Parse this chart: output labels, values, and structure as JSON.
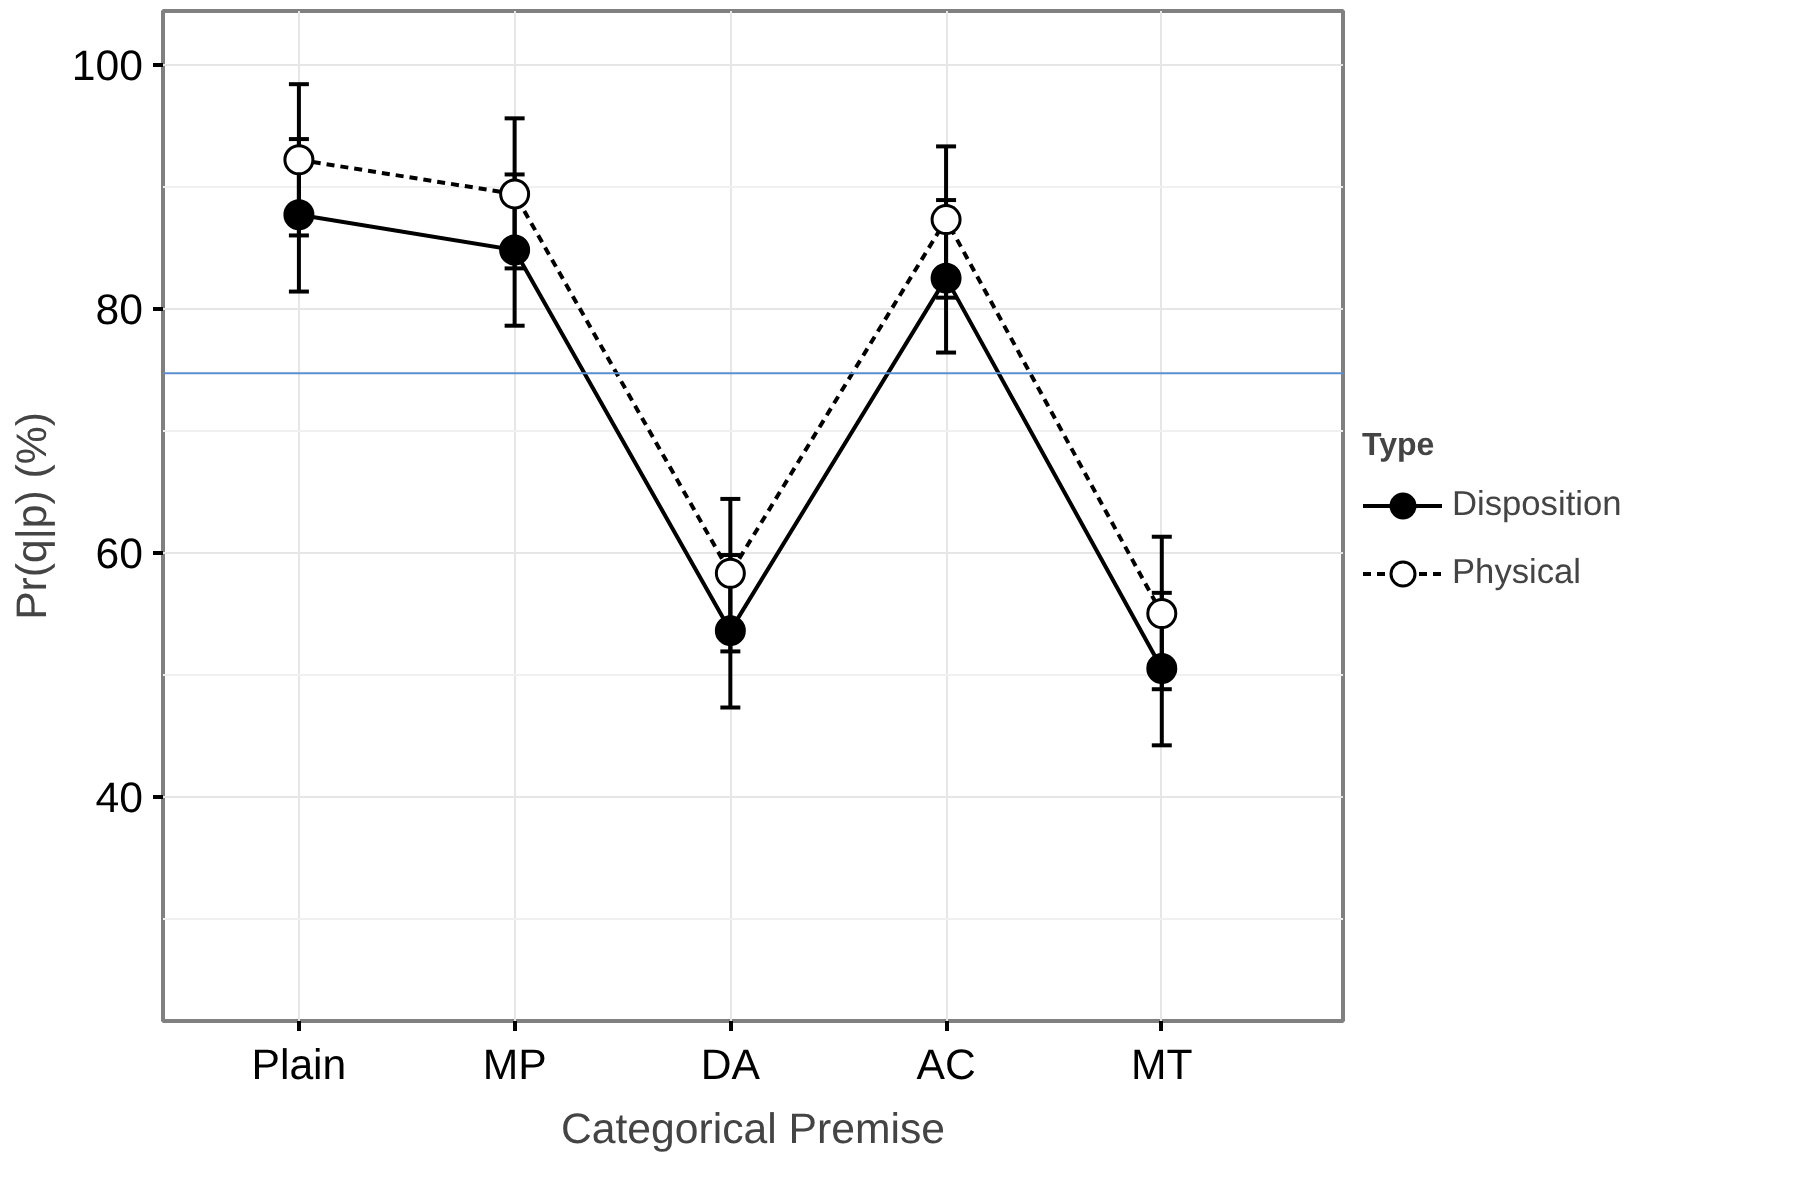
{
  "chart_data": {
    "type": "line",
    "xlabel": "Categorical Premise",
    "ylabel": "Pr(q|p) (%)",
    "legend_title": "Type",
    "categories": [
      "Plain",
      "MP",
      "DA",
      "AC",
      "MT"
    ],
    "series": [
      {
        "name": "Disposition",
        "color": "#000000",
        "line_style": "solid",
        "values": [
          87.7,
          84.8,
          53.6,
          82.5,
          50.5
        ],
        "errors": [
          [
            81.4,
            93.9
          ],
          [
            78.6,
            91.0
          ],
          [
            47.3,
            59.8
          ],
          [
            76.4,
            88.9
          ],
          [
            44.2,
            56.7
          ]
        ]
      },
      {
        "name": "Physical",
        "color": "#000000",
        "line_style": "dashed",
        "values": [
          92.2,
          89.4,
          58.3,
          87.3,
          55.0
        ],
        "errors": [
          [
            86.0,
            98.4
          ],
          [
            83.3,
            95.6
          ],
          [
            51.9,
            64.4
          ],
          [
            80.9,
            93.3
          ],
          [
            48.8,
            61.3
          ]
        ]
      }
    ],
    "ref_lines": [
      {
        "axis": "y",
        "value": 74.7,
        "color": "#5b8fd0"
      }
    ],
    "ylim": [
      21.6,
      104.4
    ],
    "yticks": [
      40,
      60,
      80,
      100
    ],
    "grid": true,
    "legend": "right",
    "marker": "circle"
  }
}
